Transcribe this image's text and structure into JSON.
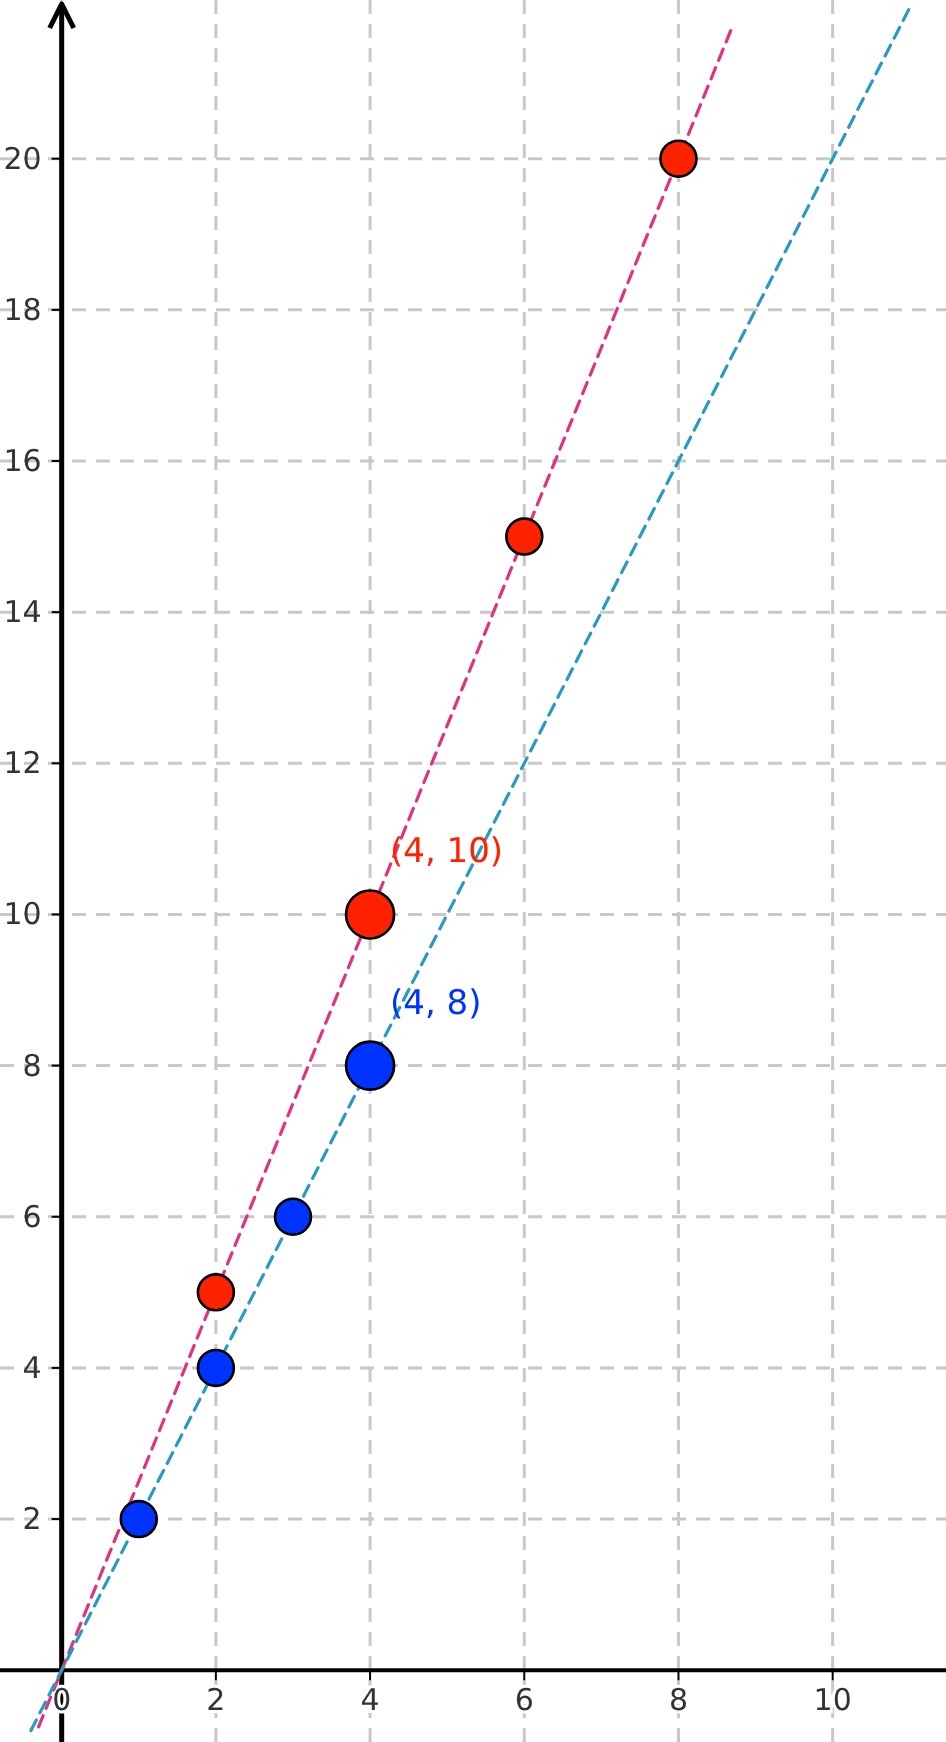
{
  "chart_data": {
    "type": "bubble",
    "xlim": [
      -0.8,
      11.47
    ],
    "ylim": [
      -0.95,
      22.1
    ],
    "xticks": [
      0,
      2,
      4,
      6,
      8,
      10
    ],
    "yticks": [
      2,
      4,
      6,
      8,
      10,
      12,
      14,
      16,
      18,
      20
    ],
    "grid": true,
    "series": [
      {
        "type": "line",
        "color": "#e0337f",
        "x": [
          -0.3,
          8.7
        ],
        "values": [
          -0.75,
          21.75
        ],
        "line_style": "dashed",
        "marker": "none"
      },
      {
        "type": "line",
        "color": "#2a9bc0",
        "x": [
          -0.4,
          11
        ],
        "values": [
          -0.8,
          22
        ],
        "line_style": "dashed",
        "marker": "none"
      },
      {
        "color": "#ff2200",
        "x": [
          2,
          4,
          6,
          8
        ],
        "values": [
          5,
          10,
          15,
          20
        ],
        "sizes": [
          0.56,
          1,
          0.56,
          0.56
        ],
        "marker": "circle"
      },
      {
        "color": "#0033ff",
        "x": [
          1,
          2,
          3,
          4
        ],
        "values": [
          2,
          4,
          6,
          8
        ],
        "sizes": [
          0.56,
          0.56,
          0.56,
          1
        ],
        "marker": "circle"
      }
    ],
    "annotations": [
      {
        "text": "(4, 10)",
        "x": 4,
        "y": 10
      },
      {
        "text": "(4, 8)",
        "x": 4,
        "y": 8
      }
    ]
  }
}
